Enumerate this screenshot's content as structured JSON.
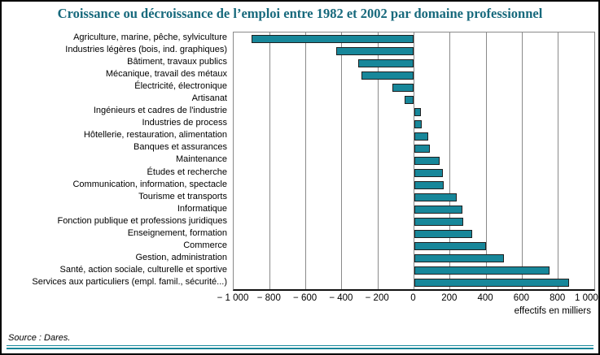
{
  "ui": {
    "title": "Croissance ou décroissance de l’emploi entre 1982 et 2002 par domaine professionnel",
    "axis_unit_label": "effectifs en milliers",
    "source_note": "Source : Dares."
  },
  "colors": {
    "bar_fill": "#17879a",
    "bar_border": "#1f1f1f",
    "title_text": "#17697c",
    "grid_line": "#8a8a8a",
    "bottom_rule": "#17879a"
  },
  "chart_data": {
    "type": "bar",
    "orientation": "horizontal",
    "title": "Croissance ou décroissance de l’emploi entre 1982 et 2002 par domaine professionnel",
    "xlabel": "effectifs en milliers",
    "xlim": [
      -1000,
      1000
    ],
    "xticks": [
      -1000,
      -800,
      -600,
      -400,
      -200,
      0,
      200,
      400,
      600,
      800,
      1000
    ],
    "xtick_labels": [
      "− 1 000",
      "− 800",
      "− 600",
      "− 400",
      "− 200",
      "0",
      "200",
      "400",
      "600",
      "800",
      "1 000"
    ],
    "grid": true,
    "legend": null,
    "categories": [
      "Agriculture, marine, pêche, sylviculture",
      "Industries légères (bois, ind. graphiques)",
      "Bâtiment, travaux publics",
      "Mécanique, travail des métaux",
      "Électricité, électronique",
      "Artisanat",
      "Ingénieurs et cadres de l'industrie",
      "Industries de process",
      "Hôtellerie, restauration, alimentation",
      "Banques et assurances",
      "Maintenance",
      "Études et recherche",
      "Communication, information, spectacle",
      "Tourisme et transports",
      "Informatique",
      "Fonction publique et professions juridiques",
      "Enseignement, formation",
      "Commerce",
      "Gestion, administration",
      "Santé, action sociale, culturelle et sportive",
      "Services aux particuliers (empl. famil., sécurité...)"
    ],
    "values": [
      -900,
      -430,
      -310,
      -290,
      -120,
      -50,
      40,
      45,
      80,
      90,
      140,
      160,
      165,
      235,
      270,
      275,
      325,
      400,
      500,
      750,
      860
    ]
  }
}
